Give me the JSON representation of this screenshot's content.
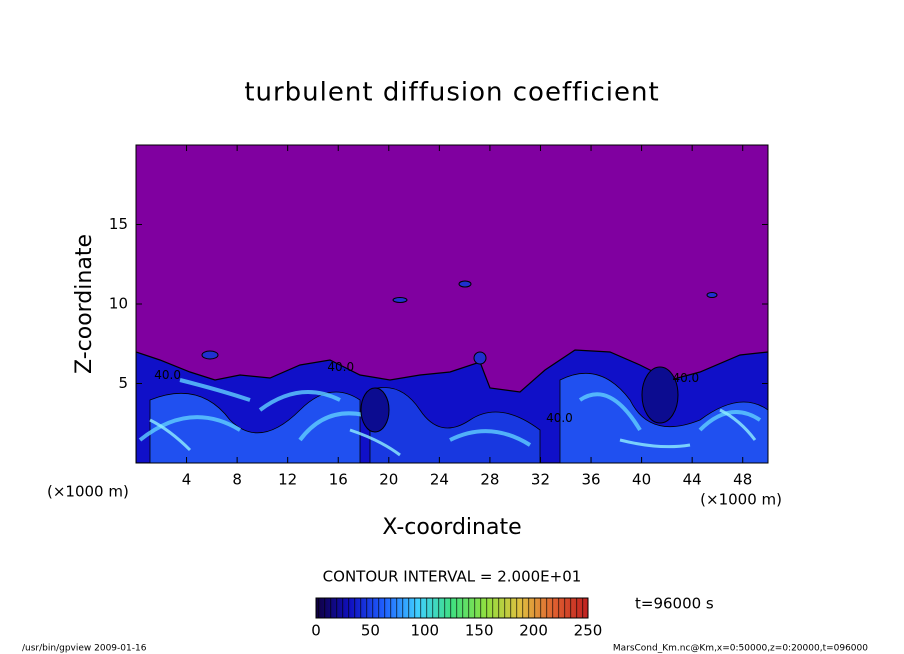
{
  "chart_data": {
    "type": "contour",
    "title": "turbulent diffusion coefficient",
    "xlabel": "X-coordinate",
    "ylabel": "Z-coordinate",
    "x_unit": "(×1000 m)",
    "xlim": [
      0,
      50
    ],
    "ylim": [
      0,
      20
    ],
    "xticks": [
      4,
      8,
      12,
      16,
      20,
      24,
      28,
      32,
      36,
      40,
      44,
      48
    ],
    "yticks": [
      5,
      10,
      15
    ],
    "background_color": "#8000a0",
    "contour_labels": [
      {
        "label": "40.0",
        "x": 16.2,
        "z": 6
      },
      {
        "label": "40.0",
        "x": 2.5,
        "z": 5.5
      },
      {
        "label": "40.0",
        "x": 33.5,
        "z": 2.8
      },
      {
        "label": "40.0",
        "x": 43.5,
        "z": 5.3
      }
    ],
    "contour_interval": "CONTOUR INTERVAL = 2.000E+01",
    "colorbar": {
      "lim": [
        0,
        250
      ],
      "ticks": [
        0,
        50,
        100,
        150,
        200,
        250
      ],
      "colors": [
        "#100040",
        "#1010c0",
        "#2060ff",
        "#40d0ff",
        "#40e080",
        "#90e040",
        "#e0c040",
        "#e06030",
        "#c02020"
      ]
    },
    "time": "t=96000 s",
    "footer_left": "/usr/bin/gpview  2009-01-16",
    "footer_right": "MarsCond_Km.nc@Km,x=0:50000,z=0:20000,t=096000"
  }
}
